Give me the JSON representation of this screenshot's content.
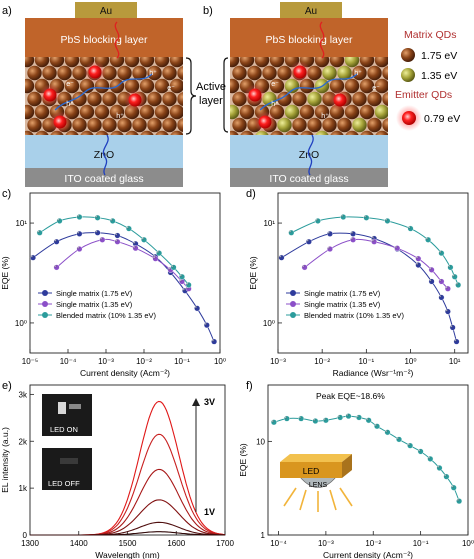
{
  "panels": {
    "a": {
      "label": "a)",
      "layers": [
        "Au",
        "PbS blocking layer",
        "ZnO",
        "ITO coated glass"
      ]
    },
    "b": {
      "label": "b)",
      "layers": [
        "Au",
        "PbS blocking layer",
        "ZnO",
        "ITO coated glass"
      ],
      "legend_matrix_title": "Matrix QDs",
      "legend_matrix_1": "1.75 eV",
      "legend_matrix_2": "1.35 eV",
      "legend_emitter_title": "Emitter QDs",
      "legend_emitter_1": "0.79 eV",
      "active_label_1": "Active",
      "active_label_2": "layer"
    }
  },
  "carrier_labels": {
    "e": "e⁻",
    "h": "h⁺"
  },
  "colors": {
    "au": "#b89a3c",
    "pbs": "#c0642a",
    "zno": "#a9d0ea",
    "ito": "#8c8c8c",
    "qd_175": "#7a3a14",
    "qd_135": "#a7a53a",
    "emitter": "#e31c1c",
    "teal": "#2b9c9c",
    "purple": "#8b4fc8",
    "navy": "#2e3b9c"
  },
  "chart_data": [
    {
      "panel": "c)",
      "type": "line",
      "xlabel": "Current density (Acm⁻²)",
      "ylabel": "EQE (%)",
      "xscale": "log",
      "yscale": "log",
      "xticks": [
        "10⁻⁵",
        "10⁻⁴",
        "10⁻³",
        "10⁻²",
        "10⁻¹",
        "10⁰"
      ],
      "yticks": [
        "10⁰",
        "10¹"
      ],
      "xlim": [
        1e-05,
        1
      ],
      "ylim": [
        0.5,
        20
      ],
      "legend_position": "lower-left",
      "series": [
        {
          "name": "Single matrix (1.75 eV)",
          "color": "#2e3b9c",
          "x": [
            1.2e-05,
            5e-05,
            0.0002,
            0.0006,
            0.002,
            0.006,
            0.02,
            0.05,
            0.12,
            0.25,
            0.45,
            0.7
          ],
          "y": [
            4.5,
            6.5,
            7.8,
            8,
            7.5,
            6.2,
            4.6,
            3.2,
            2.1,
            1.4,
            0.95,
            0.65
          ]
        },
        {
          "name": "Single matrix (1.35 eV)",
          "color": "#8b4fc8",
          "x": [
            5e-05,
            0.0002,
            0.0008,
            0.002,
            0.006,
            0.02,
            0.05,
            0.1,
            0.15
          ],
          "y": [
            3.6,
            5.5,
            6.8,
            6.5,
            5.6,
            4.4,
            3.4,
            2.6,
            2.2
          ]
        },
        {
          "name": "Blended matrix (10% 1.35 eV)",
          "color": "#2b9c9c",
          "x": [
            1.8e-05,
            6e-05,
            0.0002,
            0.0006,
            0.0015,
            0.004,
            0.01,
            0.025,
            0.06,
            0.1,
            0.15
          ],
          "y": [
            8,
            10.5,
            11.5,
            11.3,
            10.5,
            8.8,
            6.8,
            5,
            3.6,
            2.9,
            2.4
          ]
        }
      ]
    },
    {
      "panel": "d)",
      "type": "line",
      "xlabel": "Radiance (Wsr⁻¹m⁻²)",
      "ylabel": "EQE (%)",
      "xscale": "log",
      "yscale": "log",
      "xticks": [
        "10⁻³",
        "10⁻²",
        "10⁻¹",
        "10⁰",
        "10¹"
      ],
      "yticks": [
        "10⁰",
        "10¹"
      ],
      "xlim": [
        0.001,
        20
      ],
      "ylim": [
        0.5,
        20
      ],
      "legend_position": "lower-left",
      "series": [
        {
          "name": "Single matrix (1.75 eV)",
          "color": "#2e3b9c",
          "x": [
            0.0012,
            0.005,
            0.015,
            0.05,
            0.15,
            0.5,
            1.5,
            3,
            5,
            7,
            9,
            11
          ],
          "y": [
            4.5,
            6.5,
            7.8,
            7.8,
            7,
            5.5,
            3.8,
            2.6,
            1.8,
            1.3,
            0.9,
            0.65
          ]
        },
        {
          "name": "Single matrix (1.35 eV)",
          "color": "#8b4fc8",
          "x": [
            0.004,
            0.015,
            0.05,
            0.15,
            0.5,
            1.5,
            3,
            5,
            7
          ],
          "y": [
            3.6,
            5.5,
            6.8,
            6.5,
            5.6,
            4.4,
            3.4,
            2.6,
            2.2
          ]
        },
        {
          "name": "Blended matrix (10% 1.35 eV)",
          "color": "#2b9c9c",
          "x": [
            0.002,
            0.008,
            0.03,
            0.1,
            0.3,
            1,
            2.5,
            5,
            8,
            10,
            12
          ],
          "y": [
            8,
            10.5,
            11.5,
            11.3,
            10.5,
            8.8,
            6.8,
            5,
            3.6,
            2.9,
            2.4
          ]
        }
      ]
    },
    {
      "panel": "e)",
      "type": "line",
      "xlabel": "Wavelength (nm)",
      "ylabel": "EL intensity (a.u.)",
      "xticks": [
        "1300",
        "1400",
        "1500",
        "1600",
        "1700"
      ],
      "yticks": [
        "0",
        "1k",
        "2k",
        "3k"
      ],
      "xlim": [
        1300,
        1700
      ],
      "ylim": [
        0,
        3200
      ],
      "annotations": {
        "top": "3V",
        "bottom": "1V",
        "inset_on": "LED ON",
        "inset_off": "LED OFF"
      },
      "series": [
        {
          "peak": 2850,
          "color": "#e01818"
        },
        {
          "peak": 2150,
          "color": "#c82020"
        },
        {
          "peak": 1400,
          "color": "#a81818"
        },
        {
          "peak": 750,
          "color": "#801010"
        },
        {
          "peak": 270,
          "color": "#501010"
        },
        {
          "peak": 70,
          "color": "#300808"
        }
      ],
      "peak_center_nm": 1565,
      "peak_width_nm": 40
    },
    {
      "panel": "f)",
      "type": "line",
      "xlabel": "Current density (Acm⁻²)",
      "ylabel": "EQE (%)",
      "xscale": "log",
      "yscale": "log",
      "xticks": [
        "10⁻⁴",
        "10⁻³",
        "10⁻²",
        "10⁻¹",
        "10⁰"
      ],
      "yticks": [
        "1",
        "10"
      ],
      "xlim": [
        6e-05,
        1
      ],
      "ylim": [
        1,
        40
      ],
      "annotation": "Peak EQE~18.6%",
      "inset_labels": {
        "top": "LED",
        "bottom": "LENS"
      },
      "series": [
        {
          "color": "#2b9c9c",
          "x": [
            8e-05,
            0.00015,
            0.0003,
            0.0006,
            0.001,
            0.002,
            0.003,
            0.005,
            0.008,
            0.012,
            0.02,
            0.035,
            0.06,
            0.1,
            0.16,
            0.25,
            0.35,
            0.5,
            0.65
          ],
          "y": [
            16,
            17.5,
            17.5,
            16.5,
            16.8,
            18,
            18.6,
            18,
            16.8,
            14.5,
            12.5,
            10.5,
            9,
            7.8,
            6.5,
            5.2,
            4.2,
            3.2,
            2.3
          ]
        }
      ]
    }
  ]
}
